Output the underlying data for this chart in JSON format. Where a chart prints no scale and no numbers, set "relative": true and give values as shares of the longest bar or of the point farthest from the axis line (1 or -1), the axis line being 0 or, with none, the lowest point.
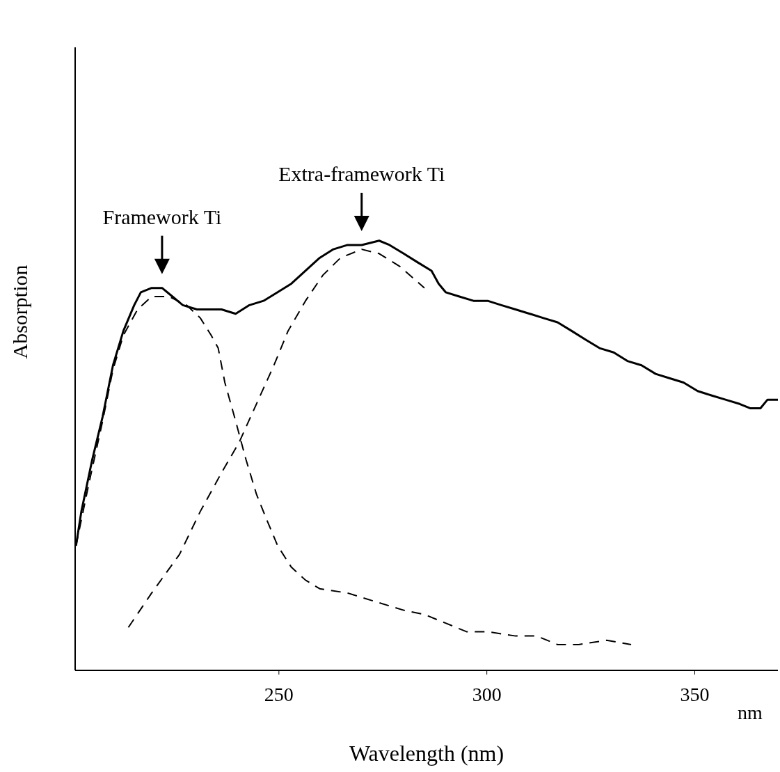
{
  "chart_data": {
    "type": "line",
    "relative": true,
    "xlabel": "Wavelength (nm)",
    "ylabel": "Absorption",
    "xlim": [
      201,
      370
    ],
    "xticks": [
      250,
      300,
      350
    ],
    "annotations": [
      {
        "text": "Framework Ti",
        "x": 221.9,
        "y": 0.89
      },
      {
        "text": "Extra-framework Ti",
        "x": 269.9,
        "y": 0.99
      },
      "nm"
    ],
    "series": [
      {
        "color": "#000000",
        "line_style": "solid",
        "x": [
          201.2,
          202.5,
          205.1,
          207.6,
          210.1,
          212.6,
          215.2,
          216.8,
          219.4,
          221.9,
          224.4,
          226.9,
          230.3,
          232.8,
          236.2,
          239.6,
          242.9,
          246.3,
          249.7,
          253.0,
          256.4,
          259.8,
          263.1,
          266.5,
          269.9,
          274.1,
          276.6,
          280.0,
          283.3,
          286.7,
          288.4,
          290.1,
          293.4,
          296.8,
          300.2,
          303.5,
          306.9,
          310.3,
          313.6,
          317.0,
          320.4,
          323.7,
          327.1,
          330.5,
          333.8,
          337.2,
          340.6,
          343.9,
          347.3,
          350.7,
          354.0,
          357.4,
          360.8,
          363.3,
          365.8,
          367.5,
          370.0
        ],
        "values": [
          0.29,
          0.37,
          0.49,
          0.59,
          0.71,
          0.79,
          0.85,
          0.88,
          0.89,
          0.89,
          0.87,
          0.85,
          0.84,
          0.84,
          0.84,
          0.83,
          0.85,
          0.86,
          0.88,
          0.9,
          0.93,
          0.96,
          0.98,
          0.99,
          0.99,
          1.0,
          0.99,
          0.97,
          0.95,
          0.93,
          0.9,
          0.88,
          0.87,
          0.86,
          0.86,
          0.85,
          0.84,
          0.83,
          0.82,
          0.81,
          0.79,
          0.77,
          0.75,
          0.74,
          0.72,
          0.71,
          0.69,
          0.68,
          0.67,
          0.65,
          0.64,
          0.63,
          0.62,
          0.61,
          0.61,
          0.63,
          0.63
        ]
      },
      {
        "color": "#000000",
        "line_style": "dashed",
        "x": [
          201.2,
          204.2,
          207.6,
          210.1,
          212.6,
          216.0,
          219.4,
          223.6,
          227.8,
          231.1,
          233.7,
          235.4,
          237.0,
          239.6,
          242.1,
          244.6,
          247.1,
          249.7,
          253.0,
          256.4,
          259.8,
          266.5,
          273.2,
          280.0,
          285.0,
          290.1,
          295.1,
          300.2,
          306.9,
          312.0,
          317.0,
          322.1,
          328.8,
          334.7
        ],
        "values": [
          0.29,
          0.43,
          0.58,
          0.7,
          0.78,
          0.84,
          0.87,
          0.87,
          0.85,
          0.82,
          0.78,
          0.75,
          0.67,
          0.58,
          0.49,
          0.41,
          0.35,
          0.29,
          0.24,
          0.21,
          0.19,
          0.18,
          0.16,
          0.14,
          0.13,
          0.11,
          0.09,
          0.09,
          0.08,
          0.08,
          0.06,
          0.06,
          0.07,
          0.06
        ]
      },
      {
        "color": "#000000",
        "line_style": "dashed",
        "x": [
          213.8,
          219.4,
          226.1,
          231.1,
          236.2,
          240.4,
          244.6,
          248.8,
          252.2,
          256.4,
          260.6,
          264.8,
          269.9,
          274.1,
          279.1,
          285.0
        ],
        "values": [
          0.1,
          0.18,
          0.27,
          0.37,
          0.46,
          0.53,
          0.62,
          0.71,
          0.79,
          0.86,
          0.92,
          0.96,
          0.98,
          0.97,
          0.94,
          0.89
        ]
      }
    ]
  }
}
